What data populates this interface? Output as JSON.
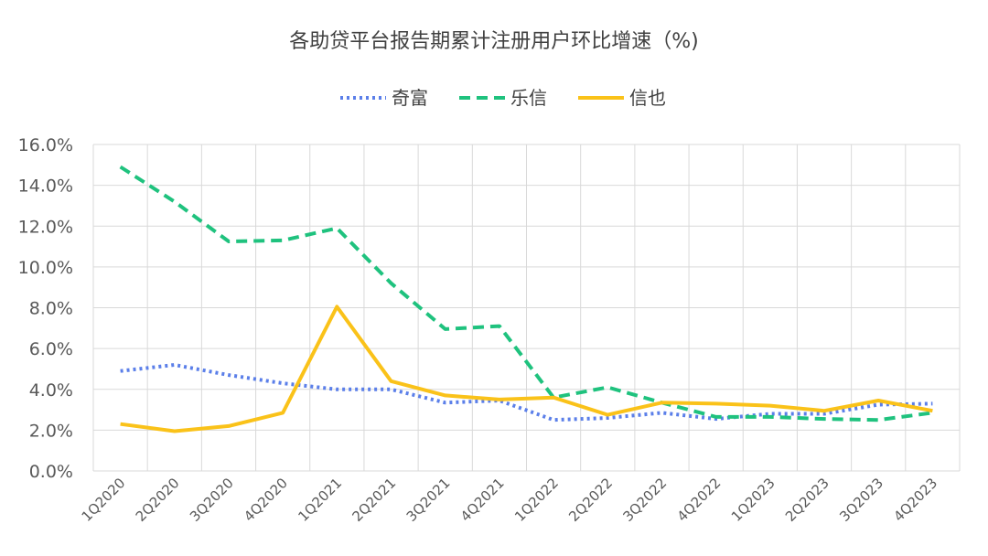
{
  "chart_data": {
    "type": "line",
    "title": "各助贷平台报告期累计注册用户环比增速（%)",
    "xlabel": "",
    "ylabel": "",
    "ylim": [
      0,
      16
    ],
    "ytick_step": 2,
    "ytick_format": "%.1f%",
    "grid": true,
    "legend_position": "top",
    "categories": [
      "1Q2020",
      "2Q2020",
      "3Q2020",
      "4Q2020",
      "1Q2021",
      "2Q2021",
      "3Q2021",
      "4Q2021",
      "1Q2022",
      "2Q2022",
      "3Q2022",
      "4Q2022",
      "1Q2023",
      "2Q2023",
      "3Q2023",
      "4Q2023"
    ],
    "series": [
      {
        "name": "奇富",
        "style": "dotted",
        "color": "#5B7FE9",
        "values": [
          4.9,
          5.2,
          4.7,
          4.3,
          4.0,
          4.0,
          3.35,
          3.45,
          2.5,
          2.6,
          2.85,
          2.55,
          2.8,
          2.8,
          3.25,
          3.3
        ]
      },
      {
        "name": "乐信",
        "style": "dashed",
        "color": "#1FC27E",
        "values": [
          14.9,
          13.2,
          11.25,
          11.3,
          11.9,
          9.2,
          6.95,
          7.1,
          3.6,
          4.1,
          3.35,
          2.65,
          2.65,
          2.55,
          2.5,
          2.85
        ]
      },
      {
        "name": "信也",
        "style": "solid",
        "color": "#FAC219",
        "values": [
          2.3,
          1.95,
          2.2,
          2.85,
          8.05,
          4.4,
          3.7,
          3.5,
          3.6,
          2.75,
          3.35,
          3.3,
          3.2,
          2.95,
          3.45,
          2.95
        ]
      }
    ]
  }
}
